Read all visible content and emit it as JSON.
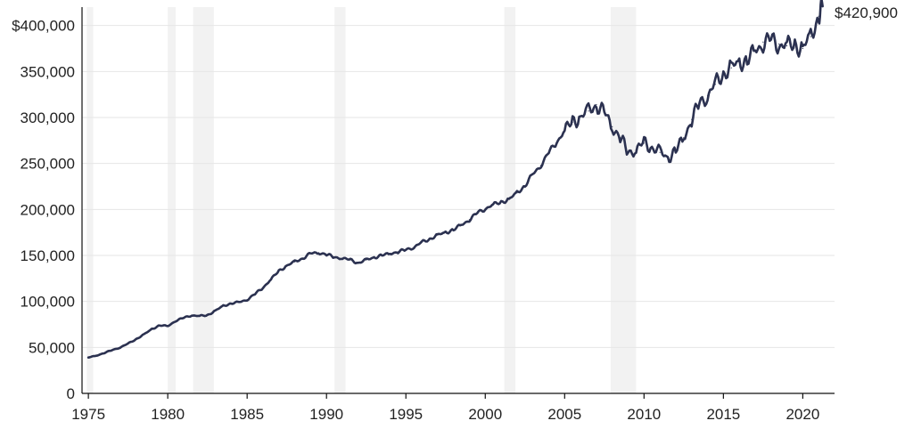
{
  "chart_data": {
    "type": "line",
    "title": "",
    "xlabel": "",
    "ylabel": "",
    "xlim": [
      1974.6,
      2022.0
    ],
    "ylim": [
      0,
      420000
    ],
    "grid": "horizontal",
    "colors": {
      "line": "#2b3150",
      "recession": "#f2f2f2",
      "grid": "#e6e6e6",
      "axis": "#111111",
      "text": "#222222"
    },
    "y_ticks": [
      {
        "value": 0,
        "label": "0"
      },
      {
        "value": 50000,
        "label": "50,000"
      },
      {
        "value": 100000,
        "label": "100,000"
      },
      {
        "value": 150000,
        "label": "150,000"
      },
      {
        "value": 200000,
        "label": "200,000"
      },
      {
        "value": 250000,
        "label": "250,000"
      },
      {
        "value": 300000,
        "label": "300,000"
      },
      {
        "value": 350000,
        "label": "350,000"
      },
      {
        "value": 400000,
        "label": "$400,000"
      }
    ],
    "x_ticks": [
      {
        "value": 1975,
        "label": "1975"
      },
      {
        "value": 1980,
        "label": "1980"
      },
      {
        "value": 1985,
        "label": "1985"
      },
      {
        "value": 1990,
        "label": "1990"
      },
      {
        "value": 1995,
        "label": "1995"
      },
      {
        "value": 2000,
        "label": "2000"
      },
      {
        "value": 2005,
        "label": "2005"
      },
      {
        "value": 2010,
        "label": "2010"
      },
      {
        "value": 2015,
        "label": "2015"
      },
      {
        "value": 2020,
        "label": "2020"
      }
    ],
    "recessions": [
      {
        "start": 1974.9,
        "end": 1975.3
      },
      {
        "start": 1980.0,
        "end": 1980.5
      },
      {
        "start": 1981.6,
        "end": 1982.9
      },
      {
        "start": 1990.5,
        "end": 1991.2
      },
      {
        "start": 2001.2,
        "end": 2001.9
      },
      {
        "start": 2007.9,
        "end": 2009.5
      }
    ],
    "end_label": {
      "x": 2021.25,
      "y": 420900,
      "text": "$420,900"
    },
    "series": [
      {
        "x": [
          1975.0,
          1975.5,
          1976.0,
          1976.5,
          1977.0,
          1977.5,
          1978.0,
          1978.5,
          1979.0,
          1979.5,
          1980.0,
          1980.5,
          1981.0,
          1981.5,
          1982.0,
          1982.5,
          1983.0,
          1983.5,
          1984.0,
          1984.5,
          1985.0,
          1985.5,
          1986.0,
          1986.5,
          1987.0,
          1987.5,
          1988.0,
          1988.5,
          1989.0,
          1989.5,
          1990.0,
          1990.5,
          1991.0,
          1991.5,
          1992.0,
          1992.5,
          1993.0,
          1993.5,
          1994.0,
          1994.5,
          1995.0,
          1995.5,
          1996.0,
          1996.5,
          1997.0,
          1997.5,
          1998.0,
          1998.5,
          1999.0,
          1999.5,
          2000.0,
          2000.5,
          2001.0,
          2001.5,
          2002.0,
          2002.5,
          2003.0,
          2003.5,
          2004.0,
          2004.5,
          2005.0,
          2005.5,
          2006.0,
          2006.5,
          2007.0,
          2007.5,
          2008.0,
          2008.5,
          2009.0,
          2009.5,
          2010.0,
          2010.5,
          2011.0,
          2011.5,
          2012.0,
          2012.5,
          2013.0,
          2013.5,
          2014.0,
          2014.5,
          2015.0,
          2015.5,
          2016.0,
          2016.5,
          2017.0,
          2017.5,
          2018.0,
          2018.5,
          2019.0,
          2019.5,
          2020.0,
          2020.5,
          2021.0,
          2021.25
        ],
        "values": [
          39000,
          41000,
          44000,
          47000,
          50000,
          54000,
          59000,
          64000,
          70000,
          74000,
          73000,
          79000,
          82000,
          85000,
          84000,
          85000,
          90000,
          95000,
          98000,
          99000,
          102000,
          108000,
          115000,
          124000,
          133000,
          139000,
          143000,
          147000,
          152000,
          153000,
          151000,
          148000,
          147000,
          145000,
          142000,
          145000,
          148000,
          150000,
          152000,
          154000,
          156000,
          159000,
          164000,
          168000,
          172000,
          175000,
          178000,
          183000,
          189000,
          196000,
          201000,
          205000,
          208000,
          211000,
          218000,
          226000,
          238000,
          248000,
          262000,
          273000,
          286000,
          295000,
          301000,
          307000,
          314000,
          305000,
          290000,
          278000,
          262000,
          265000,
          272000,
          268000,
          262000,
          257000,
          263000,
          278000,
          298000,
          315000,
          324000,
          336000,
          348000,
          354000,
          360000,
          362000,
          372000,
          382000,
          384000,
          380000,
          378000,
          379000,
          375000,
          388000,
          410000,
          420900
        ]
      }
    ]
  }
}
